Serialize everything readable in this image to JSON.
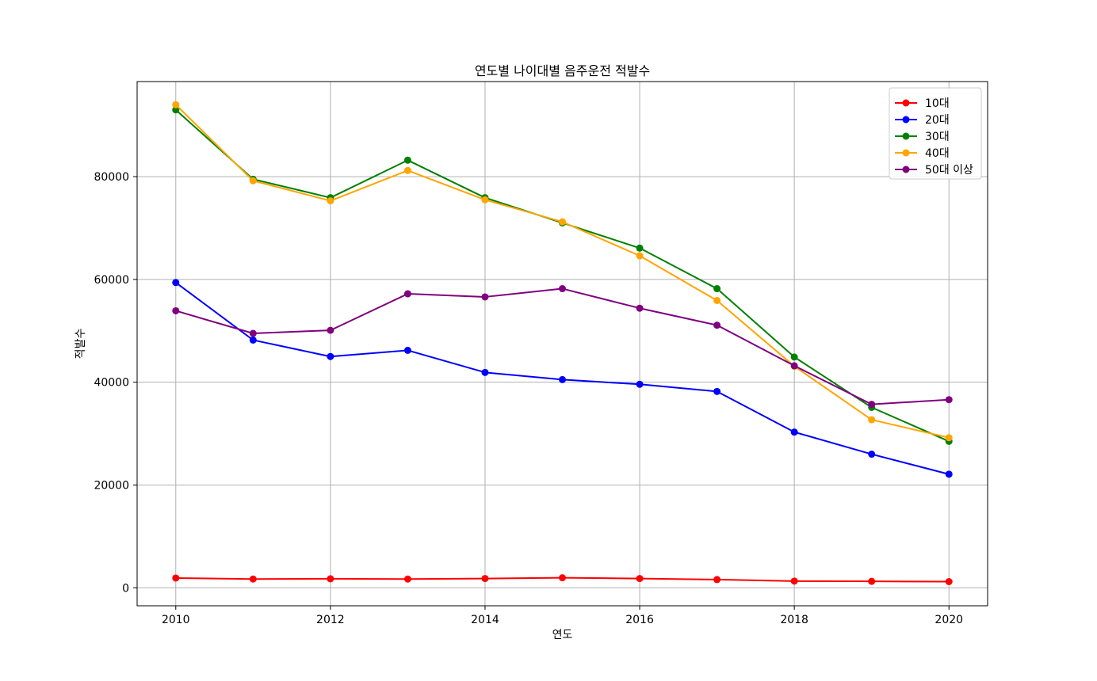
{
  "chart_data": {
    "type": "line",
    "title": "연도별 나이대별 음주운전 적발수",
    "xlabel": "연도",
    "ylabel": "적발수",
    "x": [
      2010,
      2011,
      2012,
      2013,
      2014,
      2015,
      2016,
      2017,
      2018,
      2019,
      2020
    ],
    "xlim": [
      2009.5,
      2020.5
    ],
    "ylim": [
      -3500,
      98500
    ],
    "xticks": [
      2010,
      2012,
      2014,
      2016,
      2018,
      2020
    ],
    "yticks": [
      0,
      20000,
      40000,
      60000,
      80000
    ],
    "grid": true,
    "legend_position": "top-right",
    "series": [
      {
        "name": "10대",
        "color": "#ff0000",
        "values": [
          1900,
          1700,
          1750,
          1700,
          1800,
          1950,
          1800,
          1600,
          1300,
          1250,
          1200
        ]
      },
      {
        "name": "20대",
        "color": "#0000ff",
        "values": [
          59400,
          48200,
          45000,
          46200,
          41900,
          40500,
          39600,
          38200,
          30300,
          26000,
          22100
        ]
      },
      {
        "name": "30대",
        "color": "#008000",
        "values": [
          93000,
          79500,
          75900,
          83200,
          75900,
          71000,
          66100,
          58200,
          44900,
          35100,
          28500
        ]
      },
      {
        "name": "40대",
        "color": "#ffa500",
        "values": [
          94000,
          79200,
          75300,
          81200,
          75500,
          71200,
          64600,
          55900,
          43100,
          32700,
          29200
        ]
      },
      {
        "name": "50대 이상",
        "color": "#800080",
        "values": [
          53900,
          49500,
          50100,
          57200,
          56600,
          58200,
          54400,
          51100,
          43200,
          35700,
          36600
        ]
      }
    ]
  }
}
